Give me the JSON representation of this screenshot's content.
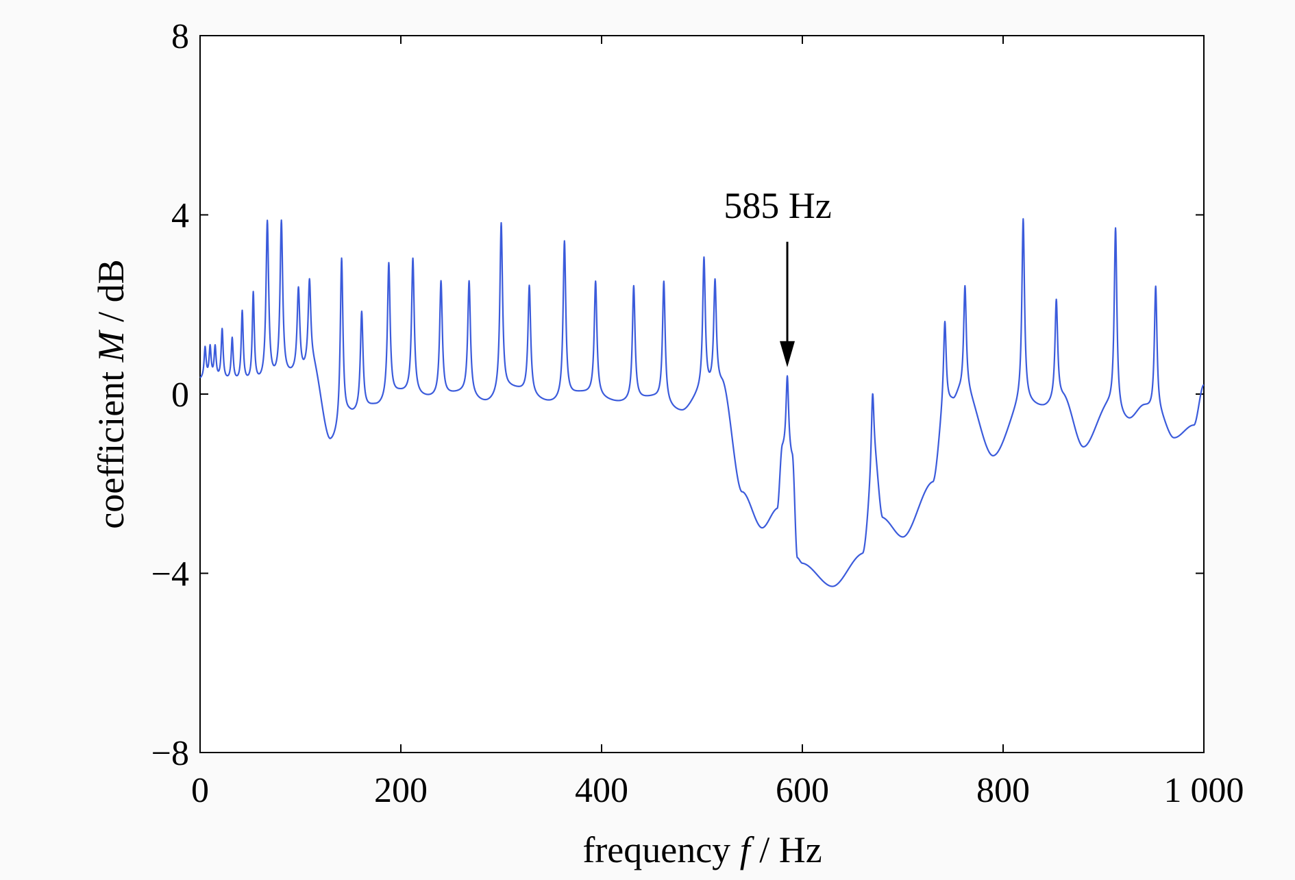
{
  "chart_data": {
    "type": "line",
    "title": "",
    "xlabel": {
      "prefix": "frequency ",
      "symbol": "f",
      "suffix": " / Hz"
    },
    "ylabel": {
      "prefix": "coefficient ",
      "symbol": "M",
      "suffix": " / dB"
    },
    "xlim": [
      0,
      1000
    ],
    "ylim": [
      -8,
      8
    ],
    "xticks": [
      0,
      200,
      400,
      600,
      800,
      1000
    ],
    "xtick_labels": [
      "0",
      "200",
      "400",
      "600",
      "800",
      "1 000"
    ],
    "yticks": [
      -8,
      -4,
      0,
      4,
      8
    ],
    "ytick_labels": [
      "−8",
      "−4",
      "0",
      "4",
      "8"
    ],
    "grid": false,
    "line_color": "#3b5bdb",
    "annotation": {
      "text": "585 Hz",
      "x": 585,
      "y_tail": 3.4,
      "y_head": 0.6
    },
    "baseline": [
      [
        0,
        0.3
      ],
      [
        60,
        0.2
      ],
      [
        100,
        0.4
      ],
      [
        112,
        0.6
      ],
      [
        130,
        -1.1
      ],
      [
        150,
        -0.5
      ],
      [
        175,
        -0.3
      ],
      [
        200,
        0.0
      ],
      [
        230,
        -0.1
      ],
      [
        260,
        0.0
      ],
      [
        285,
        -0.2
      ],
      [
        310,
        0.1
      ],
      [
        350,
        -0.2
      ],
      [
        380,
        0.0
      ],
      [
        420,
        -0.2
      ],
      [
        450,
        -0.1
      ],
      [
        480,
        -0.4
      ],
      [
        500,
        0.0
      ],
      [
        520,
        0.2
      ],
      [
        540,
        -2.2
      ],
      [
        560,
        -3.0
      ],
      [
        575,
        -2.6
      ],
      [
        580,
        -1.3
      ],
      [
        585,
        -1.4
      ],
      [
        590,
        -1.5
      ],
      [
        595,
        -3.7
      ],
      [
        600,
        -3.8
      ],
      [
        630,
        -4.3
      ],
      [
        660,
        -3.6
      ],
      [
        672,
        -1.6
      ],
      [
        680,
        -2.8
      ],
      [
        700,
        -3.2
      ],
      [
        730,
        -2.0
      ],
      [
        742,
        -0.3
      ],
      [
        750,
        -0.2
      ],
      [
        757,
        0.0
      ],
      [
        763,
        0.0
      ],
      [
        790,
        -1.4
      ],
      [
        820,
        -0.2
      ],
      [
        840,
        -0.3
      ],
      [
        860,
        -0.1
      ],
      [
        880,
        -1.2
      ],
      [
        905,
        -0.3
      ],
      [
        925,
        -0.6
      ],
      [
        940,
        -0.3
      ],
      [
        955,
        -0.5
      ],
      [
        970,
        -1.0
      ],
      [
        990,
        -0.7
      ],
      [
        1000,
        0.2
      ]
    ],
    "peaks": [
      [
        5,
        1.0
      ],
      [
        10,
        1.0
      ],
      [
        15,
        1.0
      ],
      [
        22,
        1.4
      ],
      [
        32,
        1.2
      ],
      [
        42,
        1.8
      ],
      [
        53,
        2.2
      ],
      [
        67,
        3.8
      ],
      [
        81,
        3.8
      ],
      [
        98,
        2.3
      ],
      [
        109,
        2.5
      ],
      [
        141,
        3.0
      ],
      [
        161,
        1.8
      ],
      [
        188,
        2.9
      ],
      [
        212,
        3.0
      ],
      [
        240,
        2.5
      ],
      [
        268,
        2.5
      ],
      [
        300,
        3.8
      ],
      [
        328,
        2.4
      ],
      [
        363,
        3.4
      ],
      [
        394,
        2.5
      ],
      [
        432,
        2.4
      ],
      [
        462,
        2.5
      ],
      [
        502,
        3.0
      ],
      [
        513,
        2.5
      ],
      [
        585,
        0.4
      ],
      [
        670,
        0.0
      ],
      [
        742,
        1.6
      ],
      [
        762,
        2.4
      ],
      [
        820,
        3.9
      ],
      [
        853,
        2.1
      ],
      [
        912,
        3.7
      ],
      [
        952,
        2.4
      ]
    ]
  }
}
